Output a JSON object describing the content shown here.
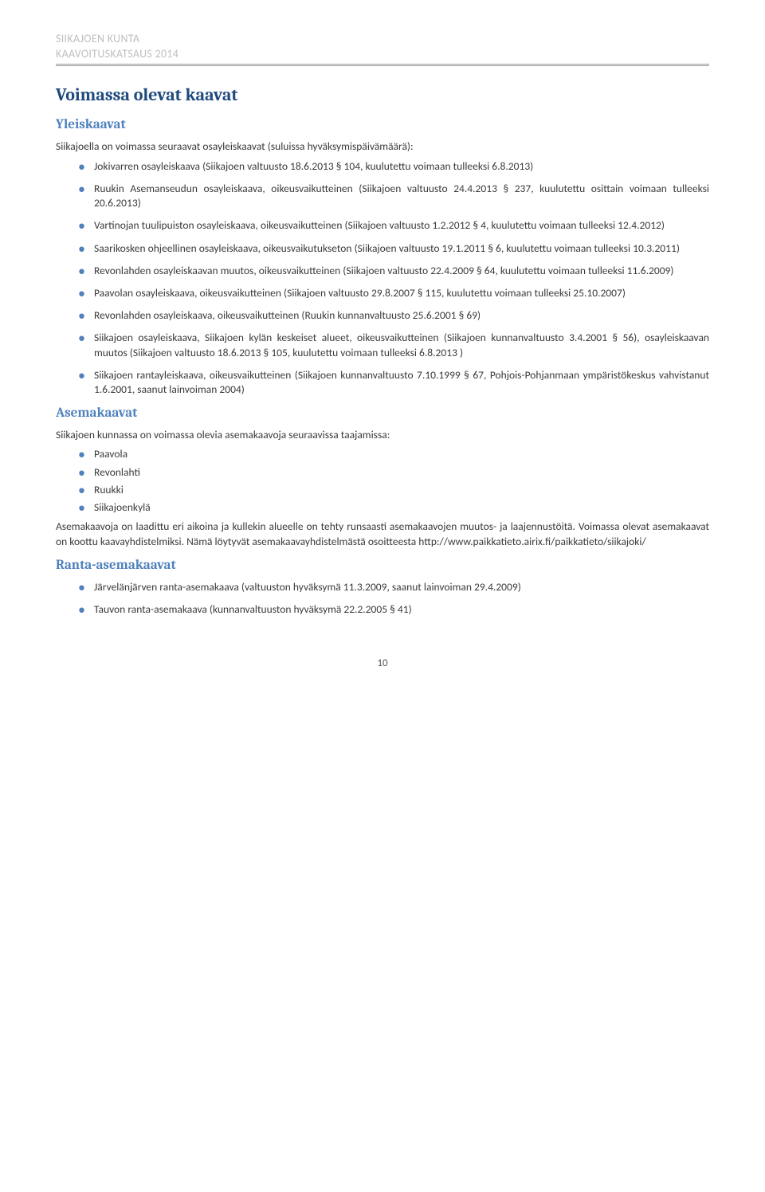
{
  "header": {
    "line1": "SIIKAJOEN KUNTA",
    "line2": "KAAVOITUSKATSAUS 2014"
  },
  "title": "Voimassa olevat kaavat",
  "yleiskaavat": {
    "heading": "Yleiskaavat",
    "intro": "Siikajoella on voimassa seuraavat osayleiskaavat (suluissa hyväksymispäivämäärä):",
    "items": [
      "Jokivarren osayleiskaava (Siikajoen valtuusto 18.6.2013 § 104, kuulutettu voimaan tulleeksi 6.8.2013)",
      "Ruukin Asemanseudun osayleiskaava, oikeusvaikutteinen (Siikajoen valtuusto 24.4.2013 § 237, kuulutettu osittain voimaan tulleeksi 20.6.2013)",
      "Vartinojan tuulipuiston osayleiskaava, oikeusvaikutteinen (Siikajoen valtuusto 1.2.2012 § 4, kuulutettu voimaan tulleeksi 12.4.2012)",
      "Saarikosken ohjeellinen osayleiskaava, oikeusvaikutukseton (Siikajoen valtuusto 19.1.2011 § 6, kuulutettu voimaan tulleeksi 10.3.2011)",
      "Revonlahden osayleiskaavan muutos, oikeusvaikutteinen (Siikajoen valtuusto 22.4.2009 § 64, kuulutettu voimaan tulleeksi 11.6.2009)",
      "Paavolan osayleiskaava, oikeusvaikutteinen (Siikajoen valtuusto 29.8.2007 § 115, kuulutettu voimaan tulleeksi 25.10.2007)",
      "Revonlahden osayleiskaava, oikeusvaikutteinen (Ruukin kunnanvaltuusto 25.6.2001 § 69)",
      "Siikajoen osayleiskaava, Siikajoen kylän keskeiset alueet, oikeusvaikutteinen (Siikajoen kunnanvaltuusto 3.4.2001 § 56), osayleiskaavan muutos (Siikajoen valtuusto 18.6.2013 § 105, kuulutettu voimaan tulleeksi 6.8.2013 )",
      "Siikajoen rantayleiskaava, oikeusvaikutteinen (Siikajoen kunnanvaltuusto 7.10.1999 § 67, Pohjois-Pohjanmaan ympäristökeskus vahvistanut 1.6.2001, saanut lainvoiman 2004)"
    ]
  },
  "asemakaavat": {
    "heading": "Asemakaavat",
    "intro": "Siikajoen kunnassa on voimassa olevia asemakaavoja seuraavissa taajamissa:",
    "items": [
      "Paavola",
      "Revonlahti",
      "Ruukki",
      "Siikajoenkylä"
    ],
    "para": "Asemakaavoja on laadittu eri aikoina ja kullekin alueelle on tehty runsaasti asemakaavojen muutos- ja laajennustöitä. Voimassa olevat asemakaavat on koottu kaavayhdistelmiksi. Nämä löytyvät asemakaavayhdistelmästä osoitteesta http://www.paikkatieto.airix.fi/paikkatieto/siikajoki/"
  },
  "ranta": {
    "heading": "Ranta-asemakaavat",
    "items": [
      "Järvelänjärven ranta-asemakaava (valtuuston hyväksymä 11.3.2009, saanut lainvoiman 29.4.2009)",
      "Tauvon ranta-asemakaava (kunnanvaltuuston hyväksymä 22.2.2005 § 41)"
    ]
  },
  "pageNumber": "10",
  "colors": {
    "heading_dark": "#1f497d",
    "heading_light": "#4f81bd",
    "header_grey": "#bfbfbf",
    "body_text": "#3a3a3a"
  }
}
